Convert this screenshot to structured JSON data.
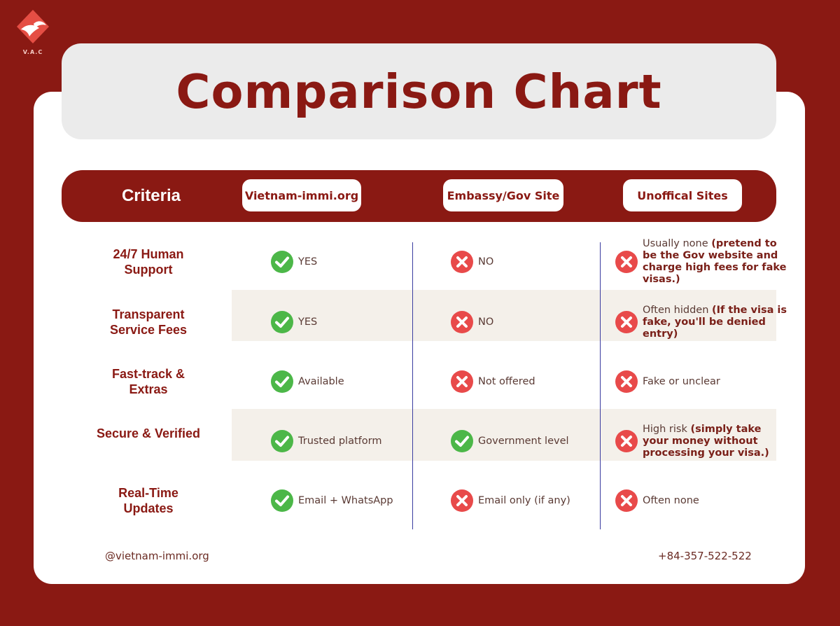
{
  "logo": {
    "text": "V.A.C"
  },
  "title": "Comparison Chart",
  "header": {
    "criteria": "Criteria",
    "columns": [
      "Vietnam-immi.org",
      "Embassy/Gov Site",
      "Unoffical Sites"
    ]
  },
  "rows": [
    {
      "label": "24/7 Human Support",
      "cells": [
        {
          "icon": "check-icon",
          "text": "YES",
          "bold": ""
        },
        {
          "icon": "cross-icon",
          "text": "NO",
          "bold": ""
        },
        {
          "icon": "cross-icon",
          "text": "Usually none",
          "bold": "(pretend to be the Gov website and charge high fees for fake visas.)"
        }
      ]
    },
    {
      "label": "Transparent Service Fees",
      "cells": [
        {
          "icon": "check-icon",
          "text": "YES",
          "bold": ""
        },
        {
          "icon": "cross-icon",
          "text": "NO",
          "bold": ""
        },
        {
          "icon": "cross-icon",
          "text": "Often hidden",
          "bold": "(If the visa is fake, you'll be denied entry)"
        }
      ]
    },
    {
      "label": "Fast-track & Extras",
      "cells": [
        {
          "icon": "check-icon",
          "text": "Available",
          "bold": ""
        },
        {
          "icon": "cross-icon",
          "text": "Not offered",
          "bold": ""
        },
        {
          "icon": "cross-icon",
          "text": "Fake or unclear",
          "bold": ""
        }
      ]
    },
    {
      "label": "Secure & Verified",
      "cells": [
        {
          "icon": "check-icon",
          "text": "Trusted platform",
          "bold": ""
        },
        {
          "icon": "check-icon",
          "text": "Government level",
          "bold": ""
        },
        {
          "icon": "cross-icon",
          "text": "High risk",
          "bold": "(simply take your money without processing your visa.)"
        }
      ]
    },
    {
      "label": "Real-Time Updates",
      "cells": [
        {
          "icon": "check-icon",
          "text": "Email + WhatsApp",
          "bold": ""
        },
        {
          "icon": "cross-icon",
          "text": "Email only (if any)",
          "bold": ""
        },
        {
          "icon": "cross-icon",
          "text": "Often none",
          "bold": ""
        }
      ]
    }
  ],
  "footer": {
    "handle": "@vietnam-immi.org",
    "phone": "+84-357-522-522"
  },
  "colors": {
    "brand": "#8a1913",
    "check": "#4cb748",
    "cross": "#e84a4a",
    "band": "#f4f0ea",
    "divider": "#3a3ca0"
  }
}
